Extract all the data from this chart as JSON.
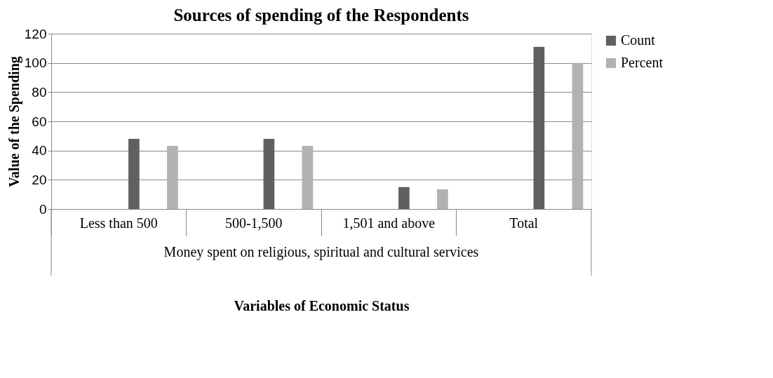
{
  "chart_data": {
    "type": "bar",
    "title": "Sources of  spending of the Respondents",
    "xlabel": "Variables of Economic Status",
    "ylabel": "Value of the Spending",
    "categories": [
      "Less than 500",
      "500-1,500",
      "1,501 and above",
      "Total"
    ],
    "series": [
      {
        "name": "Count",
        "color": "#606060",
        "values": [
          48,
          48,
          15,
          111
        ]
      },
      {
        "name": "Percent",
        "color": "#b2b2b2",
        "values": [
          43.2,
          43.2,
          13.5,
          100
        ]
      }
    ],
    "ylim": [
      0,
      120
    ],
    "yticks": [
      0,
      20,
      40,
      60,
      80,
      100,
      120
    ],
    "grid": "y",
    "legend": "right",
    "annotations": [
      "Money spent on religious, spiritual and cultural services"
    ]
  }
}
